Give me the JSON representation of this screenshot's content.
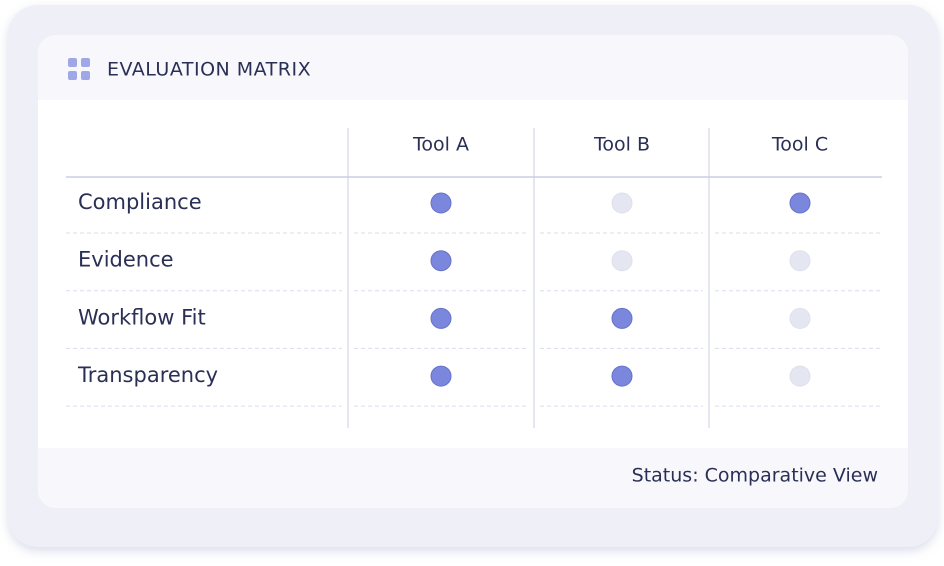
{
  "header": {
    "title": "EVALUATION MATRIX"
  },
  "table": {
    "columns": [
      "Tool A",
      "Tool B",
      "Tool C"
    ],
    "rows": [
      {
        "label": "Compliance",
        "cells": [
          true,
          false,
          true
        ]
      },
      {
        "label": "Evidence",
        "cells": [
          true,
          false,
          false
        ]
      },
      {
        "label": "Workflow Fit",
        "cells": [
          true,
          true,
          false
        ]
      },
      {
        "label": "Transparency",
        "cells": [
          true,
          true,
          false
        ]
      }
    ]
  },
  "footer": {
    "status": "Status: Comparative View"
  }
}
